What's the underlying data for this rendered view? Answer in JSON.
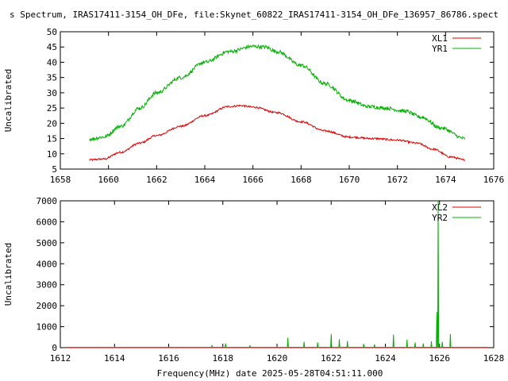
{
  "title": "s Spectrum, IRAS17411-3154_OH_DFe, file:Skynet_60822_IRAS17411-3154_OH_DFe_136957_86786.spect",
  "xlabel_bottom": "Frequency(MHz) date 2025-05-28T04:51:11.000",
  "colors": {
    "red": "#e00000",
    "green": "#00b000",
    "axis": "#000000"
  },
  "chart_data": [
    {
      "type": "line",
      "ylabel": "Uncalibrated",
      "xlim": [
        1658,
        1676
      ],
      "ylim": [
        5,
        50
      ],
      "x_ticks": [
        "1658",
        "1660",
        "1662",
        "1664",
        "1666",
        "1668",
        "1670",
        "1672",
        "1674",
        "1676"
      ],
      "y_ticks": [
        "5",
        "10",
        "15",
        "20",
        "25",
        "30",
        "35",
        "40",
        "45",
        "50"
      ],
      "legend_position": "top-right",
      "grid": false,
      "series": [
        {
          "name": "XL1",
          "color": "#e00000",
          "x": [
            1659.2,
            1659.8,
            1660.5,
            1661.3,
            1662.0,
            1663.0,
            1664.0,
            1665.0,
            1665.5,
            1666.0,
            1667.0,
            1668.0,
            1669.0,
            1670.0,
            1671.0,
            1672.0,
            1672.8,
            1673.5,
            1674.2,
            1674.8
          ],
          "y": [
            8.0,
            8.3,
            10.5,
            13.5,
            16.0,
            19.0,
            22.5,
            25.5,
            25.8,
            25.3,
            23.5,
            20.5,
            17.5,
            15.5,
            15.0,
            14.5,
            13.5,
            11.5,
            9.0,
            8.0
          ],
          "noise": 0.3
        },
        {
          "name": "YR1",
          "color": "#00b000",
          "x": [
            1659.2,
            1659.8,
            1660.5,
            1661.3,
            1662.0,
            1663.0,
            1664.0,
            1665.0,
            1666.0,
            1666.5,
            1667.0,
            1668.0,
            1669.0,
            1670.0,
            1670.8,
            1671.5,
            1672.3,
            1673.0,
            1673.8,
            1674.8
          ],
          "y": [
            14.8,
            15.5,
            19.0,
            25.0,
            30.0,
            35.0,
            40.0,
            43.5,
            45.2,
            45.0,
            43.5,
            39.0,
            33.0,
            27.5,
            25.5,
            25.0,
            24.0,
            22.0,
            18.5,
            15.0
          ],
          "noise": 0.6
        }
      ]
    },
    {
      "type": "line",
      "ylabel": "Uncalibrated",
      "xlim": [
        1612,
        1628
      ],
      "ylim": [
        0,
        7000
      ],
      "x_ticks": [
        "1612",
        "1614",
        "1616",
        "1618",
        "1620",
        "1622",
        "1624",
        "1626",
        "1628"
      ],
      "y_ticks": [
        "0",
        "1000",
        "2000",
        "3000",
        "4000",
        "5000",
        "6000",
        "7000"
      ],
      "legend_position": "top-right",
      "grid": false,
      "series": [
        {
          "name": "XL2",
          "color": "#e00000",
          "x": [
            1612.2,
            1627.8
          ],
          "y": [
            0,
            0
          ]
        },
        {
          "name": "YR2",
          "color": "#00b000",
          "baseline_x": [
            1612.2,
            1627.8
          ],
          "baseline_y": 20,
          "spikes": [
            {
              "x": 1617.6,
              "y": 120
            },
            {
              "x": 1618.1,
              "y": 200
            },
            {
              "x": 1619.0,
              "y": 110
            },
            {
              "x": 1620.4,
              "y": 480
            },
            {
              "x": 1621.0,
              "y": 280
            },
            {
              "x": 1621.5,
              "y": 250
            },
            {
              "x": 1622.0,
              "y": 650
            },
            {
              "x": 1622.3,
              "y": 400
            },
            {
              "x": 1622.6,
              "y": 320
            },
            {
              "x": 1623.2,
              "y": 180
            },
            {
              "x": 1623.6,
              "y": 150
            },
            {
              "x": 1624.3,
              "y": 620
            },
            {
              "x": 1624.8,
              "y": 380
            },
            {
              "x": 1625.1,
              "y": 250
            },
            {
              "x": 1625.4,
              "y": 200
            },
            {
              "x": 1625.7,
              "y": 300
            },
            {
              "x": 1625.9,
              "y": 1700
            },
            {
              "x": 1625.95,
              "y": 7000
            },
            {
              "x": 1626.1,
              "y": 280
            },
            {
              "x": 1626.4,
              "y": 650
            }
          ]
        }
      ]
    }
  ]
}
